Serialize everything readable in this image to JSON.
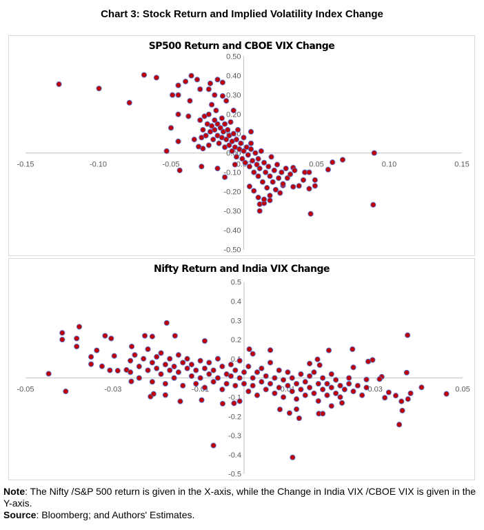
{
  "title": "Chart 3: Stock Return and Implied Volatility Index Change",
  "note": {
    "note_label": "Note",
    "note_text": ": The Nifty /S&P 500 return is given in the X-axis, while the Change in India VIX /CBOE VIX is given in the Y-axis.",
    "source_label": "Source",
    "source_text": ": Bloomberg; and Authors' Estimates."
  },
  "colors": {
    "marker_fill": "#c00000",
    "marker_edge": "#5b6fc7",
    "axis": "#bfbfbf",
    "tick_text": "#595959"
  },
  "chart_data": [
    {
      "type": "scatter",
      "title": "SP500 Return and CBOE VIX Change",
      "xlim": [
        -0.15,
        0.15
      ],
      "ylim": [
        -0.5,
        0.5
      ],
      "grid": false,
      "x_ticks": [
        "-0.15",
        "-0.10",
        "-0.05",
        "0.00",
        "0.05",
        "0.10",
        "0.15"
      ],
      "x_tick_values": [
        -0.15,
        -0.1,
        -0.05,
        0,
        0.05,
        0.1,
        0.15
      ],
      "y_ticks": [
        "0.50",
        "0.40",
        "0.30",
        "0.20",
        "0.10",
        "0.00",
        "-0.10",
        "-0.20",
        "-0.30",
        "-0.40",
        "-0.50"
      ],
      "y_tick_values": [
        0.5,
        0.4,
        0.3,
        0.2,
        0.1,
        0,
        -0.1,
        -0.2,
        -0.3,
        -0.4,
        -0.5
      ],
      "points": [
        [
          -0.127,
          0.356
        ],
        [
          -0.0995,
          0.334
        ],
        [
          -0.0786,
          0.26
        ],
        [
          -0.0685,
          0.404
        ],
        [
          -0.06,
          0.39
        ],
        [
          -0.036,
          0.4
        ],
        [
          -0.032,
          0.38
        ],
        [
          -0.04,
          0.37
        ],
        [
          -0.045,
          0.35
        ],
        [
          -0.049,
          0.3
        ],
        [
          -0.045,
          0.3
        ],
        [
          -0.03,
          0.33
        ],
        [
          -0.024,
          0.33
        ],
        [
          -0.023,
          0.36
        ],
        [
          -0.018,
          0.38
        ],
        [
          -0.0145,
          0.365
        ],
        [
          -0.037,
          0.27
        ],
        [
          -0.045,
          0.2
        ],
        [
          -0.038,
          0.19
        ],
        [
          -0.05,
          0.13
        ],
        [
          -0.045,
          0.06
        ],
        [
          -0.053,
          0.01
        ],
        [
          -0.044,
          -0.09
        ],
        [
          -0.029,
          -0.07
        ],
        [
          -0.018,
          -0.08
        ],
        [
          -0.013,
          -0.125
        ],
        [
          0.0897,
          0.0
        ],
        [
          0.089,
          -0.268
        ],
        [
          0.046,
          -0.315
        ],
        [
          0.068,
          -0.035
        ],
        [
          0.061,
          -0.048
        ],
        [
          0.058,
          -0.086
        ],
        [
          0.049,
          -0.14
        ],
        [
          0.049,
          -0.17
        ],
        [
          0.045,
          -0.185
        ],
        [
          0.038,
          -0.17
        ],
        [
          0.034,
          -0.175
        ],
        [
          0.041,
          -0.14
        ],
        [
          0.042,
          -0.1
        ],
        [
          0.045,
          -0.1
        ],
        [
          0.034,
          -0.076
        ],
        [
          0.011,
          -0.3
        ],
        [
          0.011,
          -0.265
        ],
        [
          0.014,
          -0.26
        ],
        [
          0.01,
          -0.23
        ],
        [
          0.014,
          -0.24
        ],
        [
          0.018,
          -0.245
        ],
        [
          0.018,
          -0.22
        ],
        [
          0.025,
          -0.207
        ],
        [
          0.027,
          -0.168
        ],
        [
          0.004,
          -0.173
        ],
        [
          0.007,
          -0.196
        ],
        [
          -0.012,
          0.27
        ],
        [
          -0.02,
          0.3
        ],
        [
          -0.0145,
          0.295
        ],
        [
          -0.007,
          0.22
        ],
        [
          -0.034,
          0.07
        ],
        [
          -0.031,
          0.033
        ],
        [
          -0.028,
          0.023
        ],
        [
          0.005,
          0.11
        ],
        [
          -0.03,
          0.17
        ],
        [
          -0.028,
          0.12
        ],
        [
          -0.027,
          0.19
        ],
        [
          -0.026,
          0.09
        ],
        [
          -0.025,
          0.15
        ],
        [
          -0.024,
          0.2
        ],
        [
          -0.023,
          0.11
        ],
        [
          -0.022,
          0.14
        ],
        [
          -0.021,
          0.07
        ],
        [
          -0.02,
          0.17
        ],
        [
          -0.02,
          0.12
        ],
        [
          -0.019,
          0.22
        ],
        [
          -0.018,
          0.09
        ],
        [
          -0.018,
          0.15
        ],
        [
          -0.017,
          0.05
        ],
        [
          -0.016,
          0.13
        ],
        [
          -0.015,
          0.18
        ],
        [
          -0.015,
          0.08
        ],
        [
          -0.014,
          0.11
        ],
        [
          -0.013,
          0.03
        ],
        [
          -0.013,
          0.15
        ],
        [
          -0.012,
          0.07
        ],
        [
          -0.011,
          0.12
        ],
        [
          -0.01,
          0.04
        ],
        [
          -0.01,
          0.09
        ],
        [
          -0.009,
          0.16
        ],
        [
          -0.008,
          0.01
        ],
        [
          -0.008,
          0.06
        ],
        [
          -0.007,
          0.1
        ],
        [
          -0.006,
          0.03
        ],
        [
          -0.005,
          0.07
        ],
        [
          -0.005,
          -0.02
        ],
        [
          -0.004,
          0.12
        ],
        [
          -0.003,
          0.02
        ],
        [
          -0.002,
          0.05
        ],
        [
          -0.001,
          -0.03
        ],
        [
          0,
          0.01
        ],
        [
          0,
          0.08
        ],
        [
          0.001,
          -0.05
        ],
        [
          0.002,
          0.03
        ],
        [
          0.003,
          -0.01
        ],
        [
          0.004,
          -0.07
        ],
        [
          0.005,
          0.02
        ],
        [
          0.006,
          -0.04
        ],
        [
          0.007,
          -0.1
        ],
        [
          0.008,
          0
        ],
        [
          0.009,
          -0.06
        ],
        [
          0.01,
          -0.12
        ],
        [
          0.01,
          -0.03
        ],
        [
          0.011,
          -0.08
        ],
        [
          0.012,
          0.01
        ],
        [
          0.013,
          -0.15
        ],
        [
          0.014,
          -0.05
        ],
        [
          0.015,
          -0.1
        ],
        [
          0.016,
          -0.18
        ],
        [
          0.017,
          -0.07
        ],
        [
          0.018,
          -0.12
        ],
        [
          0.019,
          -0.02
        ],
        [
          0.02,
          -0.15
        ],
        [
          0.021,
          -0.09
        ],
        [
          0.022,
          -0.19
        ],
        [
          0.023,
          -0.06
        ],
        [
          0.024,
          -0.13
        ],
        [
          0.026,
          -0.1
        ],
        [
          0.027,
          -0.16
        ],
        [
          0.029,
          -0.08
        ],
        [
          0.03,
          -0.13
        ],
        [
          0.032,
          -0.11
        ],
        [
          0.035,
          -0.09
        ],
        [
          -0.022,
          0.25
        ],
        [
          -0.024,
          0.04
        ],
        [
          -0.006,
          -0.06
        ],
        [
          0.005,
          0.05
        ],
        [
          -0.029,
          0.08
        ]
      ]
    },
    {
      "type": "scatter",
      "title": "Nifty Return and India VIX Change",
      "xlim": [
        -0.05,
        0.05
      ],
      "ylim": [
        -0.5,
        0.5
      ],
      "grid": false,
      "x_ticks": [
        "-0.05",
        "-0.03",
        "-0.01",
        "0.01",
        "0.03",
        "0.05"
      ],
      "x_tick_values": [
        -0.05,
        -0.03,
        -0.01,
        0.01,
        0.03,
        0.05
      ],
      "y_ticks": [
        "0.5",
        "0.4",
        "0.3",
        "0.2",
        "0.1",
        "0",
        "-0.1",
        "-0.2",
        "-0.3",
        "-0.4",
        "-0.5"
      ],
      "y_tick_values": [
        0.5,
        0.4,
        0.3,
        0.2,
        0.1,
        0,
        -0.1,
        -0.2,
        -0.3,
        -0.4,
        -0.5
      ],
      "points": [
        [
          -0.0447,
          0.022
        ],
        [
          -0.0416,
          0.235
        ],
        [
          -0.0416,
          0.2
        ],
        [
          -0.0408,
          -0.07
        ],
        [
          -0.0377,
          0.267
        ],
        [
          -0.0383,
          0.206
        ],
        [
          -0.0383,
          0.164
        ],
        [
          -0.035,
          0.11
        ],
        [
          -0.035,
          0.072
        ],
        [
          -0.0337,
          0.144
        ],
        [
          -0.0325,
          0.061
        ],
        [
          -0.0318,
          0.22
        ],
        [
          -0.0304,
          0.206
        ],
        [
          -0.0307,
          0.04
        ],
        [
          -0.0289,
          0.038
        ],
        [
          -0.0297,
          0.115
        ],
        [
          -0.0269,
          0.042
        ],
        [
          -0.0258,
          -0.018
        ],
        [
          -0.0257,
          0.164
        ],
        [
          -0.0227,
          0.22
        ],
        [
          -0.021,
          0.216
        ],
        [
          -0.0177,
          0.287
        ],
        [
          -0.0158,
          0.22
        ],
        [
          -0.009,
          0.193
        ],
        [
          -0.0214,
          -0.097
        ],
        [
          -0.0207,
          -0.083
        ],
        [
          -0.018,
          -0.089
        ],
        [
          -0.0146,
          -0.122
        ],
        [
          -0.0097,
          -0.115
        ],
        [
          -0.007,
          -0.352
        ],
        [
          -0.0049,
          -0.134
        ],
        [
          -0.0023,
          -0.132
        ],
        [
          -0.001,
          -0.121
        ],
        [
          0.0111,
          -0.414
        ],
        [
          0.0126,
          -0.21
        ],
        [
          0.0104,
          -0.183
        ],
        [
          0.0082,
          -0.164
        ],
        [
          0.012,
          -0.163
        ],
        [
          0.0171,
          -0.186
        ],
        [
          0.018,
          -0.186
        ],
        [
          0.02,
          -0.146
        ],
        [
          0.0224,
          -0.13
        ],
        [
          0.0194,
          0.144
        ],
        [
          0.0248,
          0.15
        ],
        [
          0.025,
          0.055
        ],
        [
          0.0284,
          0.086
        ],
        [
          0.0294,
          0.094
        ],
        [
          0.0374,
          0.223
        ],
        [
          0.0372,
          0.028
        ],
        [
          0.0406,
          -0.049
        ],
        [
          0.0463,
          -0.083
        ],
        [
          0.0381,
          -0.08
        ],
        [
          0.0375,
          -0.11
        ],
        [
          0.036,
          -0.122
        ],
        [
          0.0362,
          -0.17
        ],
        [
          0.0355,
          -0.243
        ],
        [
          0.0347,
          -0.092
        ],
        [
          0.0331,
          -0.075
        ],
        [
          0.0322,
          -0.103
        ],
        [
          0.0315,
          0.006
        ],
        [
          0.031,
          -0.006
        ],
        [
          0.028,
          -0.008
        ],
        [
          0.0012,
          0.15
        ],
        [
          0.002,
          0.126
        ],
        [
          0.006,
          0.145
        ],
        [
          0.0168,
          0.097
        ],
        [
          0.0173,
          0.067
        ],
        [
          0.015,
          0.075
        ],
        [
          -0.026,
          0.09
        ],
        [
          -0.026,
          0.03
        ],
        [
          -0.025,
          0.12
        ],
        [
          -0.024,
          0.06
        ],
        [
          -0.024,
          0.0
        ],
        [
          -0.023,
          0.1
        ],
        [
          -0.022,
          0.04
        ],
        [
          -0.022,
          0.15
        ],
        [
          -0.021,
          0.08
        ],
        [
          -0.021,
          -0.02
        ],
        [
          -0.02,
          0.05
        ],
        [
          -0.02,
          0.11
        ],
        [
          -0.019,
          0.02
        ],
        [
          -0.019,
          0.13
        ],
        [
          -0.018,
          0.07
        ],
        [
          -0.018,
          -0.03
        ],
        [
          -0.017,
          0.04
        ],
        [
          -0.017,
          0.1
        ],
        [
          -0.016,
          0.0
        ],
        [
          -0.016,
          0.06
        ],
        [
          -0.015,
          0.12
        ],
        [
          -0.015,
          0.03
        ],
        [
          -0.014,
          0.08
        ],
        [
          -0.014,
          -0.04
        ],
        [
          -0.013,
          0.05
        ],
        [
          -0.013,
          0.1
        ],
        [
          -0.012,
          0.01
        ],
        [
          -0.012,
          0.07
        ],
        [
          -0.011,
          -0.03
        ],
        [
          -0.011,
          0.04
        ],
        [
          -0.01,
          0.09
        ],
        [
          -0.01,
          0.0
        ],
        [
          -0.009,
          0.05
        ],
        [
          -0.009,
          -0.05
        ],
        [
          -0.008,
          0.02
        ],
        [
          -0.008,
          0.08
        ],
        [
          -0.007,
          -0.02
        ],
        [
          -0.007,
          0.04
        ],
        [
          -0.006,
          0.1
        ],
        [
          -0.006,
          0.0
        ],
        [
          -0.005,
          0.06
        ],
        [
          -0.005,
          -0.06
        ],
        [
          -0.004,
          0.02
        ],
        [
          -0.004,
          -0.03
        ],
        [
          -0.003,
          0.07
        ],
        [
          -0.003,
          0.01
        ],
        [
          -0.002,
          -0.04
        ],
        [
          -0.002,
          0.04
        ],
        [
          -0.001,
          0.0
        ],
        [
          -0.001,
          0.09
        ],
        [
          0,
          -0.03
        ],
        [
          0,
          0.03
        ],
        [
          0.001,
          -0.07
        ],
        [
          0.001,
          0.06
        ],
        [
          0.002,
          0.0
        ],
        [
          0.002,
          -0.04
        ],
        [
          0.003,
          0.03
        ],
        [
          0.003,
          -0.09
        ],
        [
          0.004,
          -0.02
        ],
        [
          0.004,
          0.05
        ],
        [
          0.005,
          -0.06
        ],
        [
          0.005,
          0.01
        ],
        [
          0.006,
          -0.03
        ],
        [
          0.006,
          0.08
        ],
        [
          0.007,
          -0.08
        ],
        [
          0.007,
          0.0
        ],
        [
          0.008,
          -0.05
        ],
        [
          0.008,
          0.04
        ],
        [
          0.009,
          -0.01
        ],
        [
          0.009,
          -0.1
        ],
        [
          0.01,
          -0.04
        ],
        [
          0.01,
          0.03
        ],
        [
          0.011,
          -0.07
        ],
        [
          0.011,
          0.0
        ],
        [
          0.012,
          -0.03
        ],
        [
          0.012,
          -0.11
        ],
        [
          0.013,
          0.02
        ],
        [
          0.013,
          -0.06
        ],
        [
          0.014,
          -0.02
        ],
        [
          0.014,
          -0.09
        ],
        [
          0.015,
          0.01
        ],
        [
          0.015,
          -0.05
        ],
        [
          0.016,
          -0.08
        ],
        [
          0.016,
          0.03
        ],
        [
          0.017,
          -0.03
        ],
        [
          0.017,
          -0.12
        ],
        [
          0.018,
          -0.06
        ],
        [
          0.018,
          0.0
        ],
        [
          0.019,
          -0.09
        ],
        [
          0.019,
          -0.03
        ],
        [
          0.02,
          -0.05
        ],
        [
          0.02,
          0.02
        ],
        [
          0.021,
          -0.08
        ],
        [
          0.021,
          -0.01
        ],
        [
          0.022,
          -0.04
        ],
        [
          0.022,
          -0.1
        ],
        [
          0.023,
          -0.06
        ],
        [
          0.024,
          0.0
        ],
        [
          0.024,
          -0.03
        ],
        [
          0.025,
          -0.07
        ],
        [
          0.026,
          -0.04
        ],
        [
          0.027,
          -0.09
        ],
        [
          0.028,
          -0.05
        ]
      ]
    }
  ]
}
